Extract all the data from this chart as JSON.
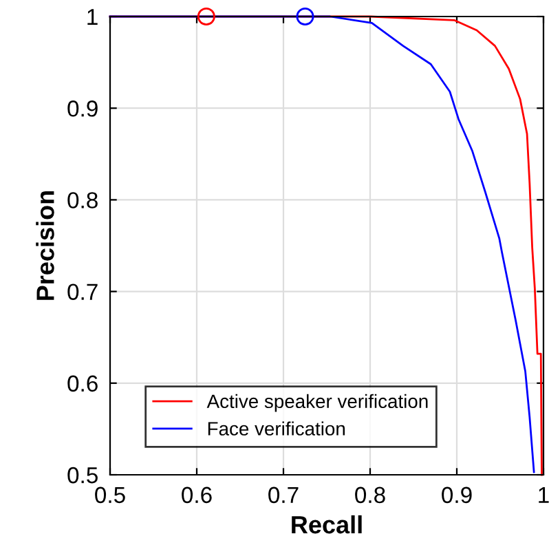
{
  "chart_data": {
    "type": "line",
    "xlabel": "Recall",
    "ylabel": "Precision",
    "xlim": [
      0.5,
      1
    ],
    "ylim": [
      0.5,
      1
    ],
    "xticks": [
      0.5,
      0.6,
      0.7,
      0.8,
      0.9,
      1
    ],
    "yticks": [
      0.5,
      0.6,
      0.7,
      0.8,
      0.9,
      1
    ],
    "grid": true,
    "legend": "bottom",
    "marker": "none",
    "series": [
      {
        "name": "Active speaker verification",
        "color": "#ff0000",
        "x": [
          0.5,
          0.8,
          0.897,
          0.923,
          0.944,
          0.96,
          0.973,
          0.981,
          0.984,
          0.987,
          0.99,
          0.993,
          0.997,
          0.998
        ],
        "values": [
          1,
          1,
          0.996,
          0.985,
          0.968,
          0.943,
          0.91,
          0.872,
          0.818,
          0.748,
          0.703,
          0.632,
          0.632,
          0.5
        ]
      },
      {
        "name": "Face verification",
        "color": "#0000ff",
        "x": [
          0.5,
          0.754,
          0.802,
          0.838,
          0.87,
          0.892,
          0.902,
          0.918,
          0.933,
          0.949,
          0.952,
          0.968,
          0.979,
          0.984,
          0.989
        ],
        "values": [
          1,
          1,
          0.993,
          0.968,
          0.948,
          0.918,
          0.888,
          0.853,
          0.808,
          0.758,
          0.743,
          0.668,
          0.613,
          0.563,
          0.503
        ]
      },
      {
        "type": "scatter",
        "marker": "circle",
        "color": "#ff0000",
        "x": [
          0.611
        ],
        "values": [
          1
        ]
      },
      {
        "type": "scatter",
        "marker": "circle",
        "color": "#0000ff",
        "x": [
          0.725
        ],
        "values": [
          1
        ]
      }
    ]
  }
}
